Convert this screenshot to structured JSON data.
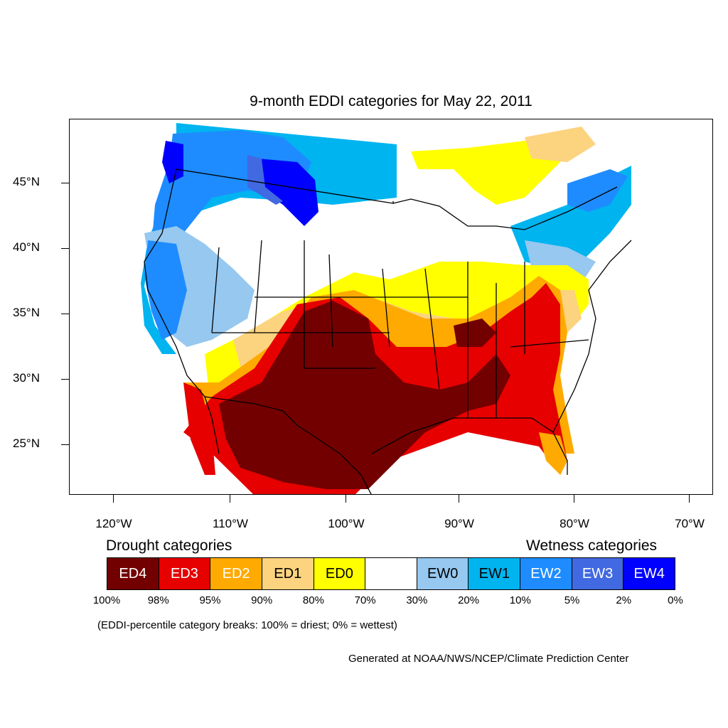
{
  "title": "9-month EDDI categories for May 22, 2011",
  "axes": {
    "latitude_labels": [
      "45°N",
      "40°N",
      "35°N",
      "30°N",
      "25°N"
    ],
    "longitude_labels": [
      "120°W",
      "110°W",
      "100°W",
      "90°W",
      "80°W",
      "70°W"
    ]
  },
  "legend": {
    "drought_heading": "Drought categories",
    "wetness_heading": "Wetness categories",
    "categories": [
      {
        "label": "ED4",
        "color": "#730000",
        "text_color": "#ffffff"
      },
      {
        "label": "ED3",
        "color": "#e60000",
        "text_color": "#ffffff"
      },
      {
        "label": "ED2",
        "color": "#ffaa00",
        "text_color": "#ffffff"
      },
      {
        "label": "ED1",
        "color": "#fcd37f",
        "text_color": "#000000"
      },
      {
        "label": "ED0",
        "color": "#ffff00",
        "text_color": "#000000"
      },
      {
        "label": "",
        "color": "#ffffff",
        "text_color": "#000000"
      },
      {
        "label": "EW0",
        "color": "#96c8f0",
        "text_color": "#000000"
      },
      {
        "label": "EW1",
        "color": "#00b4f0",
        "text_color": "#000000"
      },
      {
        "label": "EW2",
        "color": "#1e8cff",
        "text_color": "#ffffff"
      },
      {
        "label": "EW3",
        "color": "#4169e1",
        "text_color": "#ffffff"
      },
      {
        "label": "EW4",
        "color": "#0000ff",
        "text_color": "#ffffff"
      }
    ],
    "percentile_breaks": [
      "100%",
      "98%",
      "95%",
      "90%",
      "80%",
      "70%",
      "30%",
      "20%",
      "10%",
      "5%",
      "2%",
      "0%"
    ]
  },
  "note": "(EDDI-percentile category breaks: 100% = driest; 0% = wettest)",
  "credit": "Generated at NOAA/NWS/NCEP/Climate Prediction Center"
}
